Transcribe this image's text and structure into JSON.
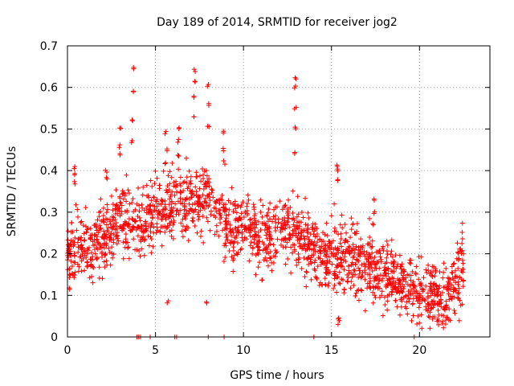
{
  "chart_data": {
    "type": "scatter",
    "title": "Day 189 of 2014, SRMTID for receiver jog2",
    "xlabel": "GPS time / hours",
    "ylabel": "SRMTID / TECUs",
    "xlim": [
      0,
      24
    ],
    "ylim": [
      0,
      0.7
    ],
    "xticks": [
      0,
      5,
      10,
      15,
      20
    ],
    "xtick_labels": [
      "0",
      "5",
      "10",
      "15",
      "20"
    ],
    "yticks": [
      0,
      0.1,
      0.2,
      0.3,
      0.4,
      0.5,
      0.6,
      0.7
    ],
    "ytick_labels": [
      "0",
      "0.1",
      "0.2",
      "0.3",
      "0.4",
      "0.5",
      "0.6",
      "0.7"
    ],
    "grid": true,
    "marker": "+",
    "color": "#ff0000",
    "trend": {
      "x": [
        0,
        0.5,
        1,
        1.5,
        2,
        2.5,
        3,
        3.5,
        4,
        4.5,
        5,
        5.5,
        6,
        6.5,
        7,
        7.5,
        8,
        8.5,
        9,
        9.5,
        10,
        10.5,
        11,
        11.5,
        12,
        12.5,
        13,
        13.5,
        14,
        14.5,
        15,
        15.5,
        16,
        16.5,
        17,
        17.5,
        18,
        18.5,
        19,
        19.5,
        20,
        20.5,
        21,
        21.5,
        22,
        22.5
      ],
      "y": [
        0.18,
        0.22,
        0.22,
        0.21,
        0.23,
        0.26,
        0.28,
        0.27,
        0.27,
        0.29,
        0.3,
        0.31,
        0.32,
        0.33,
        0.33,
        0.33,
        0.33,
        0.32,
        0.26,
        0.25,
        0.27,
        0.26,
        0.24,
        0.25,
        0.27,
        0.27,
        0.24,
        0.23,
        0.22,
        0.19,
        0.2,
        0.2,
        0.19,
        0.18,
        0.17,
        0.15,
        0.14,
        0.14,
        0.13,
        0.11,
        0.1,
        0.1,
        0.1,
        0.08,
        0.13,
        0.16
      ]
    },
    "spread": 0.055,
    "peaks": [
      {
        "x": 3.7,
        "values": [
          0.645,
          0.59,
          0.52,
          0.47
        ]
      },
      {
        "x": 3.0,
        "values": [
          0.505,
          0.46,
          0.44
        ]
      },
      {
        "x": 5.6,
        "values": [
          0.49,
          0.45,
          0.42
        ]
      },
      {
        "x": 6.3,
        "values": [
          0.5,
          0.47,
          0.44
        ]
      },
      {
        "x": 7.2,
        "values": [
          0.64,
          0.61,
          0.58,
          0.53
        ]
      },
      {
        "x": 8.0,
        "values": [
          0.605,
          0.56,
          0.51
        ]
      },
      {
        "x": 8.9,
        "values": [
          0.49,
          0.45,
          0.42
        ]
      },
      {
        "x": 12.95,
        "values": [
          0.62,
          0.6,
          0.55,
          0.5,
          0.44
        ]
      },
      {
        "x": 15.3,
        "values": [
          0.41,
          0.4,
          0.38
        ]
      },
      {
        "x": 17.4,
        "values": [
          0.33,
          0.3,
          0.27
        ]
      },
      {
        "x": 0.4,
        "values": [
          0.41,
          0.39,
          0.37
        ]
      },
      {
        "x": 2.2,
        "values": [
          0.4,
          0.38
        ]
      },
      {
        "x": 7.9,
        "values": [
          0.08
        ]
      },
      {
        "x": 5.7,
        "values": [
          0.085
        ]
      },
      {
        "x": 15.4,
        "values": [
          0.035,
          0.045
        ]
      }
    ],
    "zeros_x": [
      3.95,
      4.05,
      4.15,
      4.7,
      6.1,
      6.2,
      8.0,
      8.9,
      14.0,
      19.7
    ]
  }
}
